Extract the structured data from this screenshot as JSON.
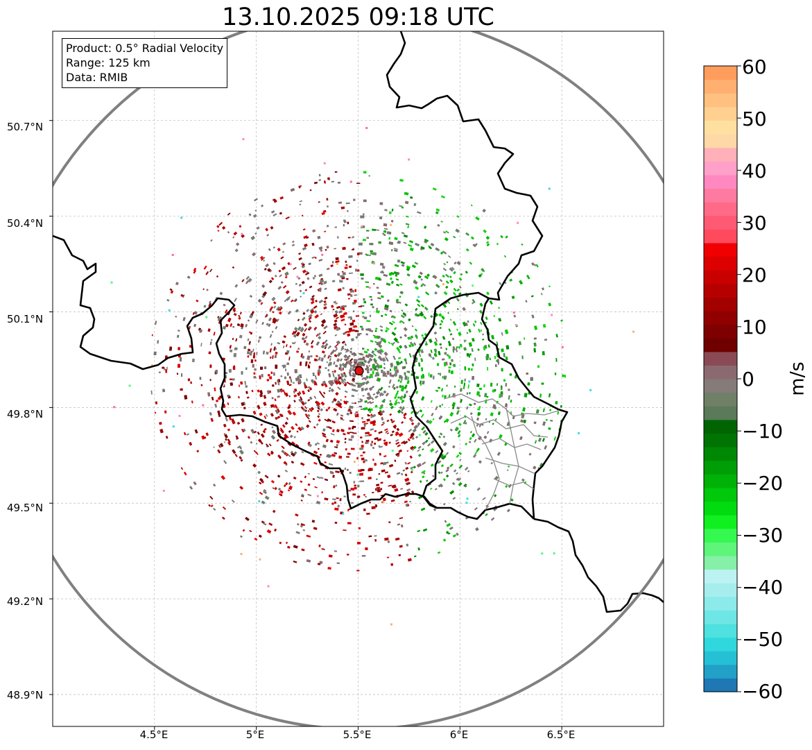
{
  "title": "13.10.2025 09:18 UTC",
  "info": {
    "product": "Product: 0.5° Radial Velocity",
    "range": "Range: 125 km",
    "source": "Data: RMIB"
  },
  "axes": {
    "lat_ticks": [
      "50.7°N",
      "50.4°N",
      "50.1°N",
      "49.8°N",
      "49.5°N",
      "49.2°N",
      "48.9°N"
    ],
    "lon_ticks": [
      "4.5°E",
      "5°E",
      "5.5°E",
      "6°E",
      "6.5°E"
    ]
  },
  "colorbar": {
    "label": "m/s",
    "min": -60,
    "max": 60,
    "ticks": [
      "60",
      "50",
      "40",
      "30",
      "20",
      "10",
      "0",
      "−10",
      "−20",
      "−30",
      "−40",
      "−50",
      "−60"
    ],
    "colors": [
      "#1f77b4",
      "#21a0c8",
      "#25c0d6",
      "#2ed8dc",
      "#4fe0e0",
      "#6ee6e6",
      "#8ceaea",
      "#a6eeee",
      "#bdf2f2",
      "#86f0a8",
      "#5ef57a",
      "#35f850",
      "#10f020",
      "#00dc10",
      "#00c80a",
      "#00b208",
      "#009e06",
      "#008804",
      "#007403",
      "#006402",
      "#5a7a5a",
      "#6f8066",
      "#857b78",
      "#8a6a70",
      "#8a4a55",
      "#6e0000",
      "#7e0000",
      "#900000",
      "#a30000",
      "#b60000",
      "#c90000",
      "#dc0000",
      "#f00000",
      "#ff4a5e",
      "#ff5a74",
      "#ff6a88",
      "#ff7aa0",
      "#ff88c0",
      "#ffa0c8",
      "#ffb0b8",
      "#ffd8a8",
      "#ffe0a0",
      "#ffd090",
      "#ffc080",
      "#ffb070",
      "#ff9d5c"
    ]
  },
  "radar": {
    "site_lat": 49.915,
    "site_lon": 5.505,
    "range_km": 125,
    "site_color": "#dd1111"
  },
  "map_extent": {
    "lon_min": 4.0,
    "lon_max": 7.0,
    "lat_min": 48.8,
    "lat_max": 50.98
  }
}
